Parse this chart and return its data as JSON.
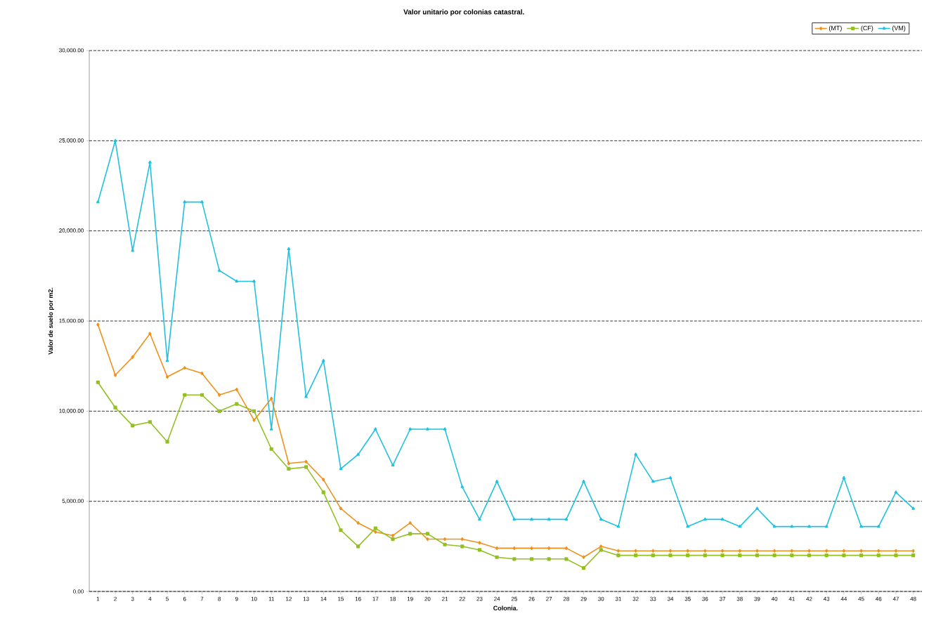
{
  "chart_data": {
    "type": "line",
    "title": "Valor unitario por colonias catastral.",
    "xlabel": "Colonia.",
    "ylabel": "Valor de suelo por m2.",
    "categories": [
      "1",
      "2",
      "3",
      "4",
      "5",
      "6",
      "7",
      "8",
      "9",
      "10",
      "11",
      "12",
      "13",
      "14",
      "15",
      "16",
      "17",
      "18",
      "19",
      "20",
      "21",
      "22",
      "23",
      "24",
      "25",
      "26",
      "27",
      "28",
      "29",
      "30",
      "31",
      "32",
      "33",
      "34",
      "35",
      "36",
      "37",
      "38",
      "39",
      "40",
      "41",
      "42",
      "43",
      "44",
      "45",
      "46",
      "47",
      "48"
    ],
    "series": [
      {
        "name": "(MT)",
        "color": "#f0901e",
        "marker": "diamond",
        "values": [
          14800,
          12000,
          13000,
          14300,
          11900,
          12400,
          12100,
          10900,
          11200,
          9500,
          10700,
          7100,
          7200,
          6200,
          4600,
          3800,
          3300,
          3100,
          3800,
          2900,
          2900,
          2900,
          2700,
          2400,
          2400,
          2400,
          2400,
          2400,
          1900,
          2500,
          2250,
          2250,
          2250,
          2250,
          2250,
          2250,
          2250,
          2250,
          2250,
          2250,
          2250,
          2250,
          2250,
          2250,
          2250,
          2250,
          2250,
          2250
        ]
      },
      {
        "name": "(CF)",
        "color": "#92c020",
        "marker": "square",
        "values": [
          11600,
          10200,
          9200,
          9400,
          8300,
          10900,
          10900,
          10000,
          10400,
          10000,
          7900,
          6800,
          6900,
          5500,
          3400,
          2500,
          3500,
          2900,
          3200,
          3200,
          2600,
          2500,
          2300,
          1900,
          1800,
          1800,
          1800,
          1800,
          1300,
          2300,
          2000,
          2000,
          2000,
          2000,
          2000,
          2000,
          2000,
          2000,
          2000,
          2000,
          2000,
          2000,
          2000,
          2000,
          2000,
          2000,
          2000,
          2000
        ]
      },
      {
        "name": "(VM)",
        "color": "#20c0e0",
        "marker": "triangle",
        "values": [
          21600,
          25000,
          18900,
          23800,
          12800,
          21600,
          21600,
          17800,
          17200,
          17200,
          9000,
          19000,
          10800,
          12800,
          6800,
          7600,
          9000,
          7000,
          9000,
          9000,
          9000,
          5800,
          4000,
          6100,
          4000,
          4000,
          4000,
          4000,
          6100,
          4000,
          3600,
          7600,
          6100,
          6300,
          3600,
          4000,
          4000,
          3600,
          4600,
          3600,
          3600,
          3600,
          3600,
          6300,
          3600,
          3600,
          5500,
          4600
        ]
      }
    ],
    "ylim": [
      0,
      30000
    ],
    "yticks": [
      {
        "value": 0,
        "label": "0.00"
      },
      {
        "value": 5000,
        "label": "5,000.00"
      },
      {
        "value": 10000,
        "label": "10,000.00"
      },
      {
        "value": 15000,
        "label": "15,000.00"
      },
      {
        "value": 20000,
        "label": "20,000.00"
      },
      {
        "value": 25000,
        "label": "25,000.00"
      },
      {
        "value": 30000,
        "label": "30,000.00"
      }
    ],
    "grid": "y",
    "legend": "top right",
    "line_style": "solid"
  }
}
